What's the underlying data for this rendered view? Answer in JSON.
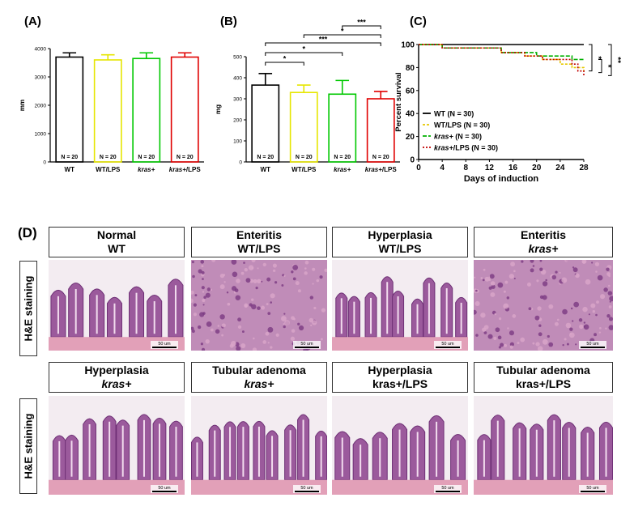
{
  "panels": {
    "A": "(A)",
    "B": "(B)",
    "C": "(C)",
    "D": "(D)"
  },
  "chart_data": [
    {
      "id": "A",
      "type": "bar",
      "ylabel": "mm",
      "ylim": [
        0,
        4000
      ],
      "yticks": [
        "0",
        "1000",
        "2000",
        "3000",
        "4000"
      ],
      "categories": [
        "WT",
        "WT/LPS",
        "kras+",
        "kras+/LPS"
      ],
      "values": [
        3700,
        3600,
        3650,
        3700
      ],
      "errors": [
        150,
        180,
        200,
        150
      ],
      "bar_labels": [
        "N = 20",
        "N = 20",
        "N = 20",
        "N = 20"
      ],
      "colors": [
        "#000000",
        "#e6e600",
        "#00c800",
        "#e00000"
      ]
    },
    {
      "id": "B",
      "type": "bar",
      "ylabel": "mg",
      "ylim": [
        0,
        500
      ],
      "yticks": [
        "0",
        "100",
        "200",
        "300",
        "400",
        "500"
      ],
      "categories": [
        "WT",
        "WT/LPS",
        "kras+",
        "kras+/LPS"
      ],
      "values": [
        365,
        330,
        322,
        300
      ],
      "errors": [
        55,
        35,
        65,
        35
      ],
      "bar_labels": [
        "N = 20",
        "N = 20",
        "N = 20",
        "N = 20"
      ],
      "colors": [
        "#000000",
        "#e6e600",
        "#00c800",
        "#e00000"
      ],
      "significance": [
        "*",
        "*",
        "***",
        "*",
        "***"
      ]
    },
    {
      "id": "C",
      "type": "line",
      "xlabel": "Days of induction",
      "ylabel": "Percent survival",
      "xlim": [
        0,
        28
      ],
      "ylim": [
        0,
        100
      ],
      "xticks": [
        "0",
        "4",
        "8",
        "12",
        "16",
        "20",
        "24",
        "28"
      ],
      "yticks": [
        "0",
        "20",
        "40",
        "60",
        "80",
        "100"
      ],
      "series": [
        {
          "name": "WT (N = 30)",
          "color": "#000000",
          "x": [
            0,
            28
          ],
          "y": [
            100,
            100
          ]
        },
        {
          "name": "WT/LPS (N = 30)",
          "color": "#e6c800",
          "x": [
            0,
            4,
            14,
            18,
            21,
            24,
            26,
            28
          ],
          "y": [
            100,
            97,
            93,
            90,
            87,
            83,
            80,
            77
          ]
        },
        {
          "name": "kras+ (N = 30)",
          "color": "#00b000",
          "x": [
            0,
            4,
            14,
            20,
            26,
            28
          ],
          "y": [
            100,
            97,
            93,
            90,
            87,
            87
          ]
        },
        {
          "name": "kras+/LPS (N = 30)",
          "color": "#c00000",
          "x": [
            0,
            4,
            14,
            18,
            21,
            26,
            27,
            28
          ],
          "y": [
            100,
            97,
            93,
            90,
            87,
            83,
            77,
            73
          ]
        }
      ],
      "significance": [
        "*",
        "*",
        "**"
      ]
    }
  ],
  "histology": {
    "side_label": "H&E staining",
    "scale": "50 um",
    "row1": [
      {
        "line1": "Normal",
        "line2": "WT"
      },
      {
        "line1": "Enteritis",
        "line2": "WT/LPS"
      },
      {
        "line1": "Hyperplasia",
        "line2": "WT/LPS"
      },
      {
        "line1": "Enteritis",
        "line2": "kras+"
      }
    ],
    "row2": [
      {
        "line1": "Hyperplasia",
        "line2": "kras+"
      },
      {
        "line1": "Tubular adenoma",
        "line2": "kras+"
      },
      {
        "line1": "Hyperplasia",
        "line2": "kras+/LPS"
      },
      {
        "line1": "Tubular adenoma",
        "line2": "kras+/LPS"
      }
    ]
  }
}
